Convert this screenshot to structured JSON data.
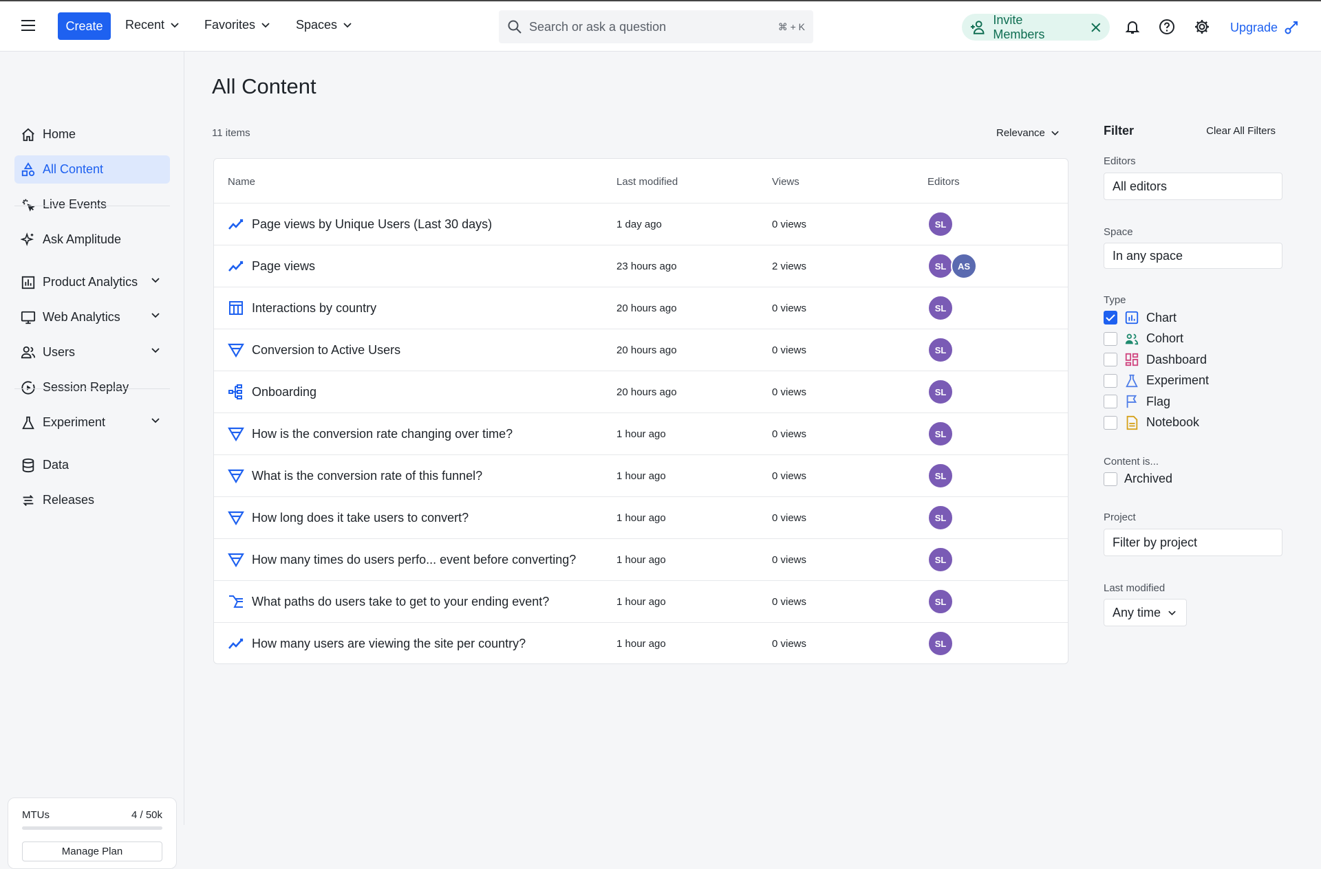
{
  "topbar": {
    "create": "Create",
    "recent": "Recent",
    "favorites": "Favorites",
    "spaces": "Spaces",
    "search_placeholder": "Search or ask a question",
    "search_shortcut": "⌘ + K",
    "invite": "Invite Members",
    "upgrade": "Upgrade"
  },
  "sidebar": {
    "items": [
      {
        "label": "Home",
        "icon": "home-icon"
      },
      {
        "label": "All Content",
        "icon": "shapes-icon",
        "active": true
      },
      {
        "label": "Live Events",
        "icon": "live-events-icon"
      },
      {
        "label": "Ask Amplitude",
        "icon": "sparkle-icon"
      },
      {
        "label": "Product Analytics",
        "icon": "bar-chart-icon",
        "expandable": true
      },
      {
        "label": "Web Analytics",
        "icon": "monitor-icon",
        "expandable": true
      },
      {
        "label": "Users",
        "icon": "users-icon",
        "expandable": true
      },
      {
        "label": "Session Replay",
        "icon": "play-circle-icon"
      },
      {
        "label": "Experiment",
        "icon": "flask-icon",
        "expandable": true
      },
      {
        "label": "Data",
        "icon": "database-icon"
      },
      {
        "label": "Releases",
        "icon": "releases-icon"
      }
    ],
    "mtu": {
      "label": "MTUs",
      "value": "4 / 50k",
      "used_fraction": 8e-05,
      "manage": "Manage Plan"
    }
  },
  "main": {
    "title": "All Content",
    "count": "11 items",
    "sort": "Relevance",
    "columns": [
      "Name",
      "Last modified",
      "Views",
      "Editors"
    ],
    "rows": [
      {
        "name": "Page views by Unique Users (Last 30 days)",
        "type": "line",
        "modified": "1 day ago",
        "views": "0 views",
        "editors": [
          "SL"
        ]
      },
      {
        "name": "Page views",
        "type": "line",
        "modified": "23 hours ago",
        "views": "2 views",
        "editors": [
          "SL",
          "AS"
        ]
      },
      {
        "name": "Interactions by country",
        "type": "table",
        "modified": "20 hours ago",
        "views": "0 views",
        "editors": [
          "SL"
        ]
      },
      {
        "name": "Conversion to Active Users",
        "type": "funnel",
        "modified": "20 hours ago",
        "views": "0 views",
        "editors": [
          "SL"
        ]
      },
      {
        "name": "Onboarding",
        "type": "journey",
        "modified": "20 hours ago",
        "views": "0 views",
        "editors": [
          "SL"
        ]
      },
      {
        "name": "How is the conversion rate changing over time?",
        "type": "funnel",
        "modified": "1 hour ago",
        "views": "0 views",
        "editors": [
          "SL"
        ]
      },
      {
        "name": "What is the conversion rate of this funnel?",
        "type": "funnel",
        "modified": "1 hour ago",
        "views": "0 views",
        "editors": [
          "SL"
        ]
      },
      {
        "name": "How long does it take users to convert?",
        "type": "funnel",
        "modified": "1 hour ago",
        "views": "0 views",
        "editors": [
          "SL"
        ]
      },
      {
        "name": "How many times do users perfo... event before converting?",
        "type": "funnel",
        "modified": "1 hour ago",
        "views": "0 views",
        "editors": [
          "SL"
        ]
      },
      {
        "name": "What paths do users take to get to your ending event?",
        "type": "paths",
        "modified": "1 hour ago",
        "views": "0 views",
        "editors": [
          "SL"
        ]
      },
      {
        "name": "How many users are viewing the site per country?",
        "type": "line",
        "modified": "1 hour ago",
        "views": "0 views",
        "editors": [
          "SL"
        ]
      }
    ]
  },
  "filter": {
    "title": "Filter",
    "clear": "Clear All Filters",
    "editors_label": "Editors",
    "editors_value": "All editors",
    "space_label": "Space",
    "space_value": "In any space",
    "type_label": "Type",
    "types": [
      {
        "label": "Chart",
        "checked": true,
        "color": "#1e61f0"
      },
      {
        "label": "Cohort",
        "checked": false,
        "color": "#1f8a6e"
      },
      {
        "label": "Dashboard",
        "checked": false,
        "color": "#d0457f"
      },
      {
        "label": "Experiment",
        "checked": false,
        "color": "#4f7ee8"
      },
      {
        "label": "Flag",
        "checked": false,
        "color": "#4f7ee8"
      },
      {
        "label": "Notebook",
        "checked": false,
        "color": "#d6a21c"
      }
    ],
    "content_label": "Content is...",
    "archived": "Archived",
    "archived_checked": false,
    "project_label": "Project",
    "project_placeholder": "Filter by project",
    "modified_label": "Last modified",
    "modified_value": "Any time"
  },
  "colors": {
    "accent": "#1e61f0",
    "avatar_sl": "#7a5bb5",
    "avatar_as": "#5a6ab0",
    "invite_bg": "#e2f5ef"
  }
}
